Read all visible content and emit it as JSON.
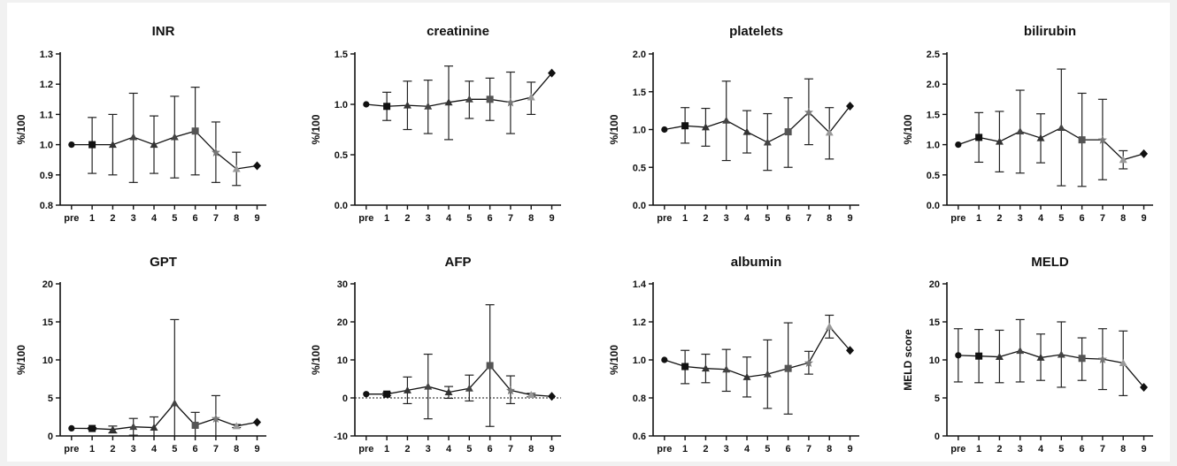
{
  "chart_data": [
    {
      "type": "line",
      "title": "INR",
      "ylabel": "%/100",
      "categories": [
        "pre",
        "1",
        "2",
        "3",
        "4",
        "5",
        "6",
        "7",
        "8",
        "9"
      ],
      "values": [
        1.0,
        1.0,
        1.0,
        1.025,
        1.0,
        1.025,
        1.045,
        0.975,
        0.92,
        0.93
      ],
      "lower": [
        null,
        0.905,
        0.9,
        0.875,
        0.905,
        0.89,
        0.9,
        0.875,
        0.865,
        null
      ],
      "upper": [
        null,
        1.09,
        1.1,
        1.17,
        1.095,
        1.16,
        1.19,
        1.075,
        0.975,
        null
      ],
      "ylim": [
        0.8,
        1.3
      ],
      "yticks": [
        "0.8",
        "0.9",
        "1.0",
        "1.1",
        "1.2",
        "1.3"
      ],
      "ytick_values": [
        0.8,
        0.9,
        1.0,
        1.1,
        1.2,
        1.3
      ],
      "reference_line": null
    },
    {
      "type": "line",
      "title": "creatinine",
      "ylabel": "%/100",
      "categories": [
        "pre",
        "1",
        "2",
        "3",
        "4",
        "5",
        "6",
        "7",
        "8",
        "9"
      ],
      "values": [
        1.0,
        0.98,
        0.99,
        0.98,
        1.02,
        1.05,
        1.05,
        1.02,
        1.07,
        1.31
      ],
      "lower": [
        null,
        0.84,
        0.75,
        0.71,
        0.65,
        0.86,
        0.84,
        0.71,
        0.9,
        null
      ],
      "upper": [
        null,
        1.12,
        1.23,
        1.24,
        1.38,
        1.23,
        1.26,
        1.32,
        1.22,
        null
      ],
      "ylim": [
        0.0,
        1.5
      ],
      "yticks": [
        "0.0",
        "0.5",
        "1.0",
        "1.5"
      ],
      "ytick_values": [
        0.0,
        0.5,
        1.0,
        1.5
      ],
      "reference_line": null
    },
    {
      "type": "line",
      "title": "platelets",
      "ylabel": "%/100",
      "categories": [
        "pre",
        "1",
        "2",
        "3",
        "4",
        "5",
        "6",
        "7",
        "8",
        "9"
      ],
      "values": [
        1.0,
        1.05,
        1.03,
        1.12,
        0.97,
        0.83,
        0.97,
        1.23,
        0.96,
        1.31
      ],
      "lower": [
        null,
        0.82,
        0.78,
        0.59,
        0.69,
        0.46,
        0.5,
        0.8,
        0.61,
        null
      ],
      "upper": [
        null,
        1.29,
        1.28,
        1.64,
        1.25,
        1.21,
        1.42,
        1.67,
        1.29,
        null
      ],
      "ylim": [
        0.0,
        2.0
      ],
      "yticks": [
        "0.0",
        "0.5",
        "1.0",
        "1.5",
        "2.0"
      ],
      "ytick_values": [
        0.0,
        0.5,
        1.0,
        1.5,
        2.0
      ],
      "reference_line": null
    },
    {
      "type": "line",
      "title": "bilirubin",
      "ylabel": "%/100",
      "categories": [
        "pre",
        "1",
        "2",
        "3",
        "4",
        "5",
        "6",
        "7",
        "8",
        "9"
      ],
      "values": [
        1.0,
        1.12,
        1.05,
        1.22,
        1.11,
        1.28,
        1.08,
        1.08,
        0.75,
        0.85
      ],
      "lower": [
        null,
        0.71,
        0.55,
        0.53,
        0.7,
        0.32,
        0.31,
        0.42,
        0.6,
        null
      ],
      "upper": [
        null,
        1.53,
        1.55,
        1.9,
        1.51,
        2.25,
        1.85,
        1.75,
        0.9,
        null
      ],
      "ylim": [
        0.0,
        2.5
      ],
      "yticks": [
        "0.0",
        "0.5",
        "1.0",
        "1.5",
        "2.0",
        "2.5"
      ],
      "ytick_values": [
        0.0,
        0.5,
        1.0,
        1.5,
        2.0,
        2.5
      ],
      "reference_line": null
    },
    {
      "type": "line",
      "title": "GPT",
      "ylabel": "%/100",
      "categories": [
        "pre",
        "1",
        "2",
        "3",
        "4",
        "5",
        "6",
        "7",
        "8",
        "9"
      ],
      "values": [
        1.0,
        0.98,
        0.85,
        1.2,
        1.1,
        4.3,
        1.4,
        2.3,
        1.3,
        1.8
      ],
      "lower": [
        null,
        0.85,
        0.4,
        0.1,
        0.0,
        0.0,
        0.0,
        0.0,
        1.1,
        null
      ],
      "upper": [
        null,
        1.1,
        1.3,
        2.3,
        2.5,
        15.3,
        3.1,
        5.3,
        1.5,
        null
      ],
      "ylim": [
        0,
        20
      ],
      "yticks": [
        "0",
        "5",
        "10",
        "15",
        "20"
      ],
      "ytick_values": [
        0,
        5,
        10,
        15,
        20
      ],
      "reference_line": null
    },
    {
      "type": "line",
      "title": "AFP",
      "ylabel": "%/100",
      "categories": [
        "pre",
        "1",
        "2",
        "3",
        "4",
        "5",
        "6",
        "7",
        "8",
        "9"
      ],
      "values": [
        1.0,
        1.0,
        2.0,
        3.0,
        1.5,
        2.5,
        8.5,
        2.0,
        0.8,
        0.4
      ],
      "lower": [
        null,
        0.6,
        -1.5,
        -5.5,
        -0.1,
        -0.8,
        -7.5,
        -1.5,
        0.3,
        null
      ],
      "upper": [
        null,
        1.4,
        5.5,
        11.5,
        3.0,
        6.0,
        24.5,
        5.8,
        1.2,
        null
      ],
      "ylim": [
        -10,
        30
      ],
      "yticks": [
        "-10",
        "0",
        "10",
        "20",
        "30"
      ],
      "ytick_values": [
        -10,
        0,
        10,
        20,
        30
      ],
      "reference_line": 0
    },
    {
      "type": "line",
      "title": "albumin",
      "ylabel": "%/100",
      "categories": [
        "pre",
        "1",
        "2",
        "3",
        "4",
        "5",
        "6",
        "7",
        "8",
        "9"
      ],
      "values": [
        1.0,
        0.965,
        0.955,
        0.95,
        0.91,
        0.925,
        0.955,
        0.985,
        1.175,
        1.05
      ],
      "lower": [
        null,
        0.875,
        0.88,
        0.835,
        0.805,
        0.745,
        0.715,
        0.925,
        1.115,
        null
      ],
      "upper": [
        null,
        1.05,
        1.03,
        1.055,
        1.015,
        1.105,
        1.195,
        1.045,
        1.235,
        null
      ],
      "ylim": [
        0.6,
        1.4
      ],
      "yticks": [
        "0.6",
        "0.8",
        "1.0",
        "1.2",
        "1.4"
      ],
      "ytick_values": [
        0.6,
        0.8,
        1.0,
        1.2,
        1.4
      ],
      "reference_line": null
    },
    {
      "type": "line",
      "title": "MELD",
      "ylabel": "MELD score",
      "categories": [
        "pre",
        "1",
        "2",
        "3",
        "4",
        "5",
        "6",
        "7",
        "8",
        "9"
      ],
      "values": [
        10.6,
        10.5,
        10.4,
        11.2,
        10.3,
        10.7,
        10.2,
        10.1,
        9.6,
        6.4
      ],
      "lower": [
        7.1,
        7.0,
        7.0,
        7.1,
        7.3,
        6.4,
        7.3,
        6.1,
        5.3,
        null
      ],
      "upper": [
        14.1,
        14.0,
        13.9,
        15.3,
        13.4,
        15.0,
        12.9,
        14.1,
        13.8,
        null
      ],
      "ylim": [
        0,
        20
      ],
      "yticks": [
        "0",
        "5",
        "10",
        "15",
        "20"
      ],
      "ytick_values": [
        0,
        5,
        10,
        15,
        20
      ],
      "reference_line": null
    }
  ]
}
